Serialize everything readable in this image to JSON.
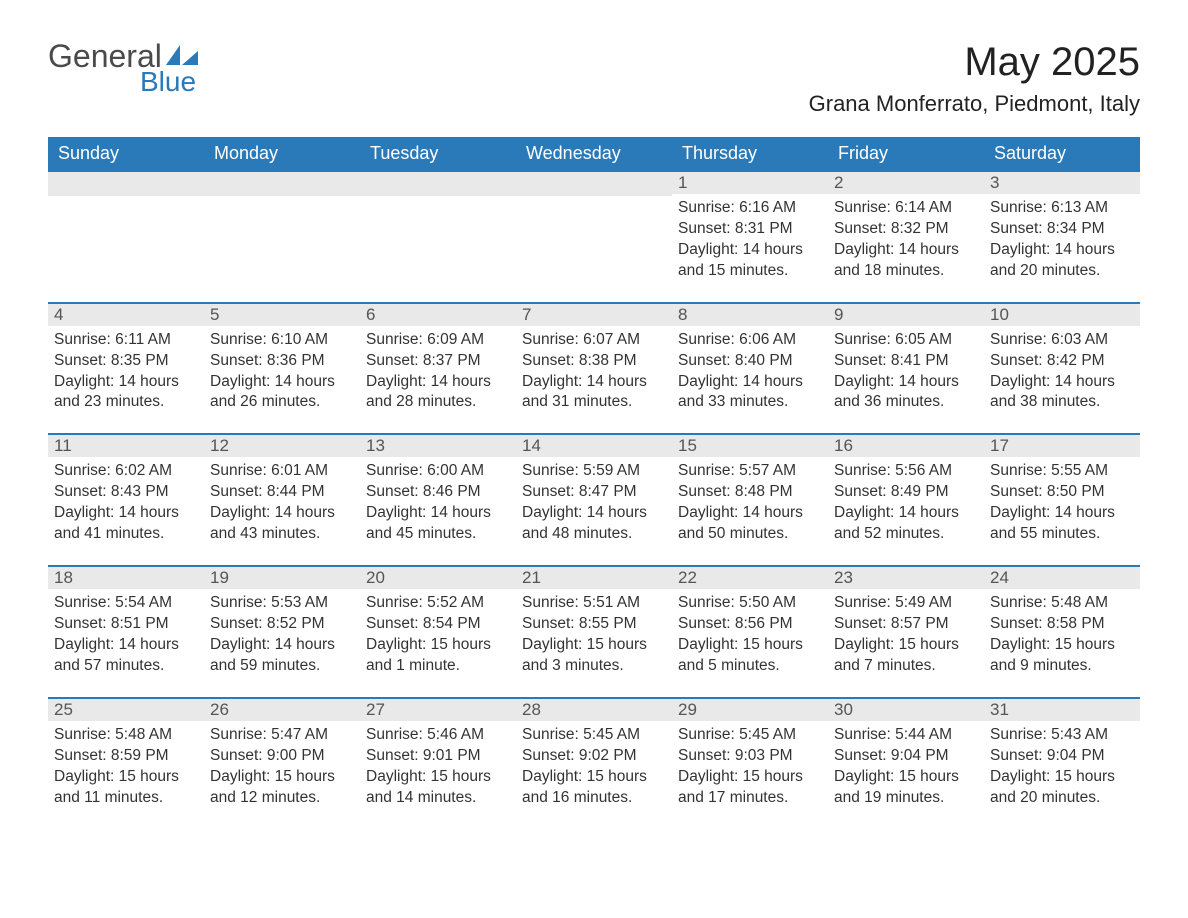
{
  "logo": {
    "text1": "General",
    "text2": "Blue"
  },
  "title": "May 2025",
  "location": "Grana Monferrato, Piedmont, Italy",
  "colors": {
    "header_bg": "#2a7ab9",
    "header_text": "#ffffff",
    "daynum_bg": "#e9e9e9",
    "daynum_text": "#555555",
    "body_text": "#333333",
    "rule": "#2a7ab9",
    "page_bg": "#ffffff",
    "logo_gray": "#4a4a4a",
    "logo_blue": "#2a7ab9"
  },
  "typography": {
    "title_fontsize": 40,
    "location_fontsize": 22,
    "header_fontsize": 18,
    "daynum_fontsize": 17,
    "body_fontsize": 15.5,
    "font_family": "Arial"
  },
  "columns": [
    "Sunday",
    "Monday",
    "Tuesday",
    "Wednesday",
    "Thursday",
    "Friday",
    "Saturday"
  ],
  "weeks": [
    [
      null,
      null,
      null,
      null,
      {
        "day": "1",
        "sunrise": "Sunrise: 6:16 AM",
        "sunset": "Sunset: 8:31 PM",
        "daylight": "Daylight: 14 hours and 15 minutes."
      },
      {
        "day": "2",
        "sunrise": "Sunrise: 6:14 AM",
        "sunset": "Sunset: 8:32 PM",
        "daylight": "Daylight: 14 hours and 18 minutes."
      },
      {
        "day": "3",
        "sunrise": "Sunrise: 6:13 AM",
        "sunset": "Sunset: 8:34 PM",
        "daylight": "Daylight: 14 hours and 20 minutes."
      }
    ],
    [
      {
        "day": "4",
        "sunrise": "Sunrise: 6:11 AM",
        "sunset": "Sunset: 8:35 PM",
        "daylight": "Daylight: 14 hours and 23 minutes."
      },
      {
        "day": "5",
        "sunrise": "Sunrise: 6:10 AM",
        "sunset": "Sunset: 8:36 PM",
        "daylight": "Daylight: 14 hours and 26 minutes."
      },
      {
        "day": "6",
        "sunrise": "Sunrise: 6:09 AM",
        "sunset": "Sunset: 8:37 PM",
        "daylight": "Daylight: 14 hours and 28 minutes."
      },
      {
        "day": "7",
        "sunrise": "Sunrise: 6:07 AM",
        "sunset": "Sunset: 8:38 PM",
        "daylight": "Daylight: 14 hours and 31 minutes."
      },
      {
        "day": "8",
        "sunrise": "Sunrise: 6:06 AM",
        "sunset": "Sunset: 8:40 PM",
        "daylight": "Daylight: 14 hours and 33 minutes."
      },
      {
        "day": "9",
        "sunrise": "Sunrise: 6:05 AM",
        "sunset": "Sunset: 8:41 PM",
        "daylight": "Daylight: 14 hours and 36 minutes."
      },
      {
        "day": "10",
        "sunrise": "Sunrise: 6:03 AM",
        "sunset": "Sunset: 8:42 PM",
        "daylight": "Daylight: 14 hours and 38 minutes."
      }
    ],
    [
      {
        "day": "11",
        "sunrise": "Sunrise: 6:02 AM",
        "sunset": "Sunset: 8:43 PM",
        "daylight": "Daylight: 14 hours and 41 minutes."
      },
      {
        "day": "12",
        "sunrise": "Sunrise: 6:01 AM",
        "sunset": "Sunset: 8:44 PM",
        "daylight": "Daylight: 14 hours and 43 minutes."
      },
      {
        "day": "13",
        "sunrise": "Sunrise: 6:00 AM",
        "sunset": "Sunset: 8:46 PM",
        "daylight": "Daylight: 14 hours and 45 minutes."
      },
      {
        "day": "14",
        "sunrise": "Sunrise: 5:59 AM",
        "sunset": "Sunset: 8:47 PM",
        "daylight": "Daylight: 14 hours and 48 minutes."
      },
      {
        "day": "15",
        "sunrise": "Sunrise: 5:57 AM",
        "sunset": "Sunset: 8:48 PM",
        "daylight": "Daylight: 14 hours and 50 minutes."
      },
      {
        "day": "16",
        "sunrise": "Sunrise: 5:56 AM",
        "sunset": "Sunset: 8:49 PM",
        "daylight": "Daylight: 14 hours and 52 minutes."
      },
      {
        "day": "17",
        "sunrise": "Sunrise: 5:55 AM",
        "sunset": "Sunset: 8:50 PM",
        "daylight": "Daylight: 14 hours and 55 minutes."
      }
    ],
    [
      {
        "day": "18",
        "sunrise": "Sunrise: 5:54 AM",
        "sunset": "Sunset: 8:51 PM",
        "daylight": "Daylight: 14 hours and 57 minutes."
      },
      {
        "day": "19",
        "sunrise": "Sunrise: 5:53 AM",
        "sunset": "Sunset: 8:52 PM",
        "daylight": "Daylight: 14 hours and 59 minutes."
      },
      {
        "day": "20",
        "sunrise": "Sunrise: 5:52 AM",
        "sunset": "Sunset: 8:54 PM",
        "daylight": "Daylight: 15 hours and 1 minute."
      },
      {
        "day": "21",
        "sunrise": "Sunrise: 5:51 AM",
        "sunset": "Sunset: 8:55 PM",
        "daylight": "Daylight: 15 hours and 3 minutes."
      },
      {
        "day": "22",
        "sunrise": "Sunrise: 5:50 AM",
        "sunset": "Sunset: 8:56 PM",
        "daylight": "Daylight: 15 hours and 5 minutes."
      },
      {
        "day": "23",
        "sunrise": "Sunrise: 5:49 AM",
        "sunset": "Sunset: 8:57 PM",
        "daylight": "Daylight: 15 hours and 7 minutes."
      },
      {
        "day": "24",
        "sunrise": "Sunrise: 5:48 AM",
        "sunset": "Sunset: 8:58 PM",
        "daylight": "Daylight: 15 hours and 9 minutes."
      }
    ],
    [
      {
        "day": "25",
        "sunrise": "Sunrise: 5:48 AM",
        "sunset": "Sunset: 8:59 PM",
        "daylight": "Daylight: 15 hours and 11 minutes."
      },
      {
        "day": "26",
        "sunrise": "Sunrise: 5:47 AM",
        "sunset": "Sunset: 9:00 PM",
        "daylight": "Daylight: 15 hours and 12 minutes."
      },
      {
        "day": "27",
        "sunrise": "Sunrise: 5:46 AM",
        "sunset": "Sunset: 9:01 PM",
        "daylight": "Daylight: 15 hours and 14 minutes."
      },
      {
        "day": "28",
        "sunrise": "Sunrise: 5:45 AM",
        "sunset": "Sunset: 9:02 PM",
        "daylight": "Daylight: 15 hours and 16 minutes."
      },
      {
        "day": "29",
        "sunrise": "Sunrise: 5:45 AM",
        "sunset": "Sunset: 9:03 PM",
        "daylight": "Daylight: 15 hours and 17 minutes."
      },
      {
        "day": "30",
        "sunrise": "Sunrise: 5:44 AM",
        "sunset": "Sunset: 9:04 PM",
        "daylight": "Daylight: 15 hours and 19 minutes."
      },
      {
        "day": "31",
        "sunrise": "Sunrise: 5:43 AM",
        "sunset": "Sunset: 9:04 PM",
        "daylight": "Daylight: 15 hours and 20 minutes."
      }
    ]
  ]
}
